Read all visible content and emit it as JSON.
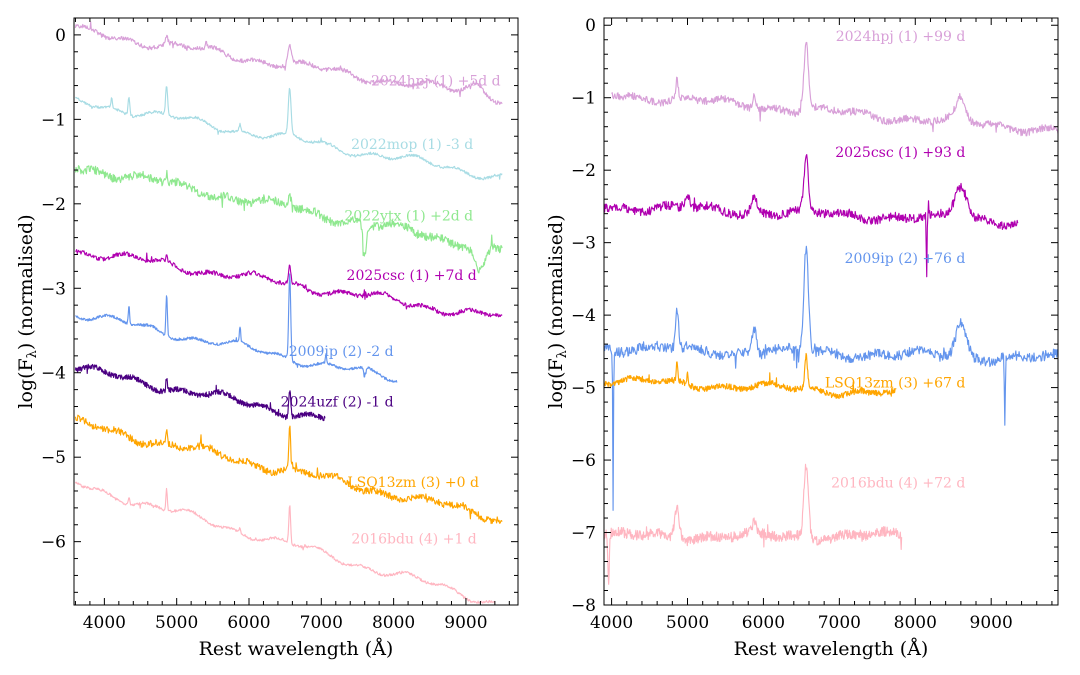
{
  "figure": {
    "background": "#ffffff"
  },
  "chart_data": [
    {
      "type": "line",
      "panel": "left",
      "xlabel": "Rest wavelength (Å)",
      "ylabel": "log(F",
      "ylabel_sub": "λ",
      "ylabel_tail": ") (normalised)",
      "xlim": [
        3580,
        9720
      ],
      "ylim": [
        -6.75,
        0.2
      ],
      "xticks": [
        4000,
        5000,
        6000,
        7000,
        8000,
        9000
      ],
      "yticks": [
        0,
        -1,
        -2,
        -3,
        -4,
        -5,
        -6
      ],
      "grid": false,
      "series": [
        {
          "name": "2024hpj (1) +5d d",
          "color": "#d8a0d8",
          "x_range": [
            3600,
            9500
          ],
          "start": 0.05,
          "end": -0.75,
          "noise": 0.025,
          "features": [
            {
              "x": 6563,
              "h": 0.22,
              "w": 25
            },
            {
              "x": 4861,
              "h": 0.1,
              "w": 15
            },
            {
              "x": 5410,
              "h": 0.08,
              "w": 8
            },
            {
              "x": 9150,
              "h": 0.12,
              "w": 120
            }
          ],
          "label_x": 9480,
          "label_y": -0.6
        },
        {
          "name": "2022mop (1) -3 d",
          "color": "#a8dce4",
          "x_range": [
            3600,
            9500
          ],
          "start": -0.78,
          "end": -1.68,
          "noise": 0.015,
          "features": [
            {
              "x": 6563,
              "h": 0.55,
              "w": 18
            },
            {
              "x": 4861,
              "h": 0.35,
              "w": 14
            },
            {
              "x": 4340,
              "h": 0.22,
              "w": 12
            },
            {
              "x": 4101,
              "h": 0.12,
              "w": 10
            },
            {
              "x": 5876,
              "h": 0.08,
              "w": 12
            }
          ],
          "label_x": 9100,
          "label_y": -1.35
        },
        {
          "name": "2022ytx (1) +2d d",
          "color": "#8fe88f",
          "x_range": [
            3600,
            9500
          ],
          "start": -1.55,
          "end": -2.55,
          "noise": 0.05,
          "features": [
            {
              "x": 6563,
              "h": 0.15,
              "w": 25
            },
            {
              "x": 7600,
              "h": -0.35,
              "w": 25
            },
            {
              "x": 9200,
              "h": -0.3,
              "w": 70
            },
            {
              "x": 4861,
              "h": 0.1,
              "w": 15
            }
          ],
          "label_x": 9100,
          "label_y": -2.2
        },
        {
          "name": "2025csc (1) +7d d",
          "color": "#b000b0",
          "x_range": [
            3600,
            9500
          ],
          "start": -2.55,
          "end": -3.35,
          "noise": 0.025,
          "features": [
            {
              "x": 6563,
              "h": 0.22,
              "w": 14
            },
            {
              "x": 4861,
              "h": 0.06,
              "w": 12
            }
          ],
          "label_x": 9150,
          "label_y": -2.9
        },
        {
          "name": "2009ip (2) -2 d",
          "color": "#6495ed",
          "x_range": [
            3600,
            8050
          ],
          "start": -3.3,
          "end": -4.08,
          "noise": 0.015,
          "features": [
            {
              "x": 6563,
              "h": 1.0,
              "w": 14
            },
            {
              "x": 4861,
              "h": 0.5,
              "w": 10
            },
            {
              "x": 4340,
              "h": 0.22,
              "w": 9
            },
            {
              "x": 5876,
              "h": 0.18,
              "w": 9
            },
            {
              "x": 7065,
              "h": 0.12,
              "w": 9
            },
            {
              "x": 7600,
              "h": -0.12,
              "w": 15
            }
          ],
          "label_x": 8000,
          "label_y": -3.8
        },
        {
          "name": "2024uzf (2) -1 d",
          "color": "#4b0082",
          "x_range": [
            3600,
            7050
          ],
          "start": -3.95,
          "end": -4.55,
          "noise": 0.03,
          "features": [
            {
              "x": 6563,
              "h": 0.32,
              "w": 14
            },
            {
              "x": 4861,
              "h": 0.12,
              "w": 10
            }
          ],
          "label_x": 8000,
          "label_y": -4.4
        },
        {
          "name": "LSQ13zm (3) +0 d",
          "color": "#ffa500",
          "x_range": [
            3600,
            9500
          ],
          "start": -4.6,
          "end": -5.72,
          "noise": 0.04,
          "features": [
            {
              "x": 6563,
              "h": 0.55,
              "w": 12
            },
            {
              "x": 4861,
              "h": 0.18,
              "w": 10
            }
          ],
          "label_x": 9180,
          "label_y": -5.35
        },
        {
          "name": "2016bdu (4) +1 d",
          "color": "#ffb6c1",
          "x_range": [
            3600,
            9400
          ],
          "start": -5.32,
          "end": -6.72,
          "noise": 0.015,
          "features": [
            {
              "x": 6563,
              "h": 0.45,
              "w": 12
            },
            {
              "x": 4861,
              "h": 0.25,
              "w": 10
            },
            {
              "x": 4340,
              "h": 0.1,
              "w": 9
            },
            {
              "x": 5876,
              "h": 0.06,
              "w": 9
            }
          ],
          "label_x": 9150,
          "label_y": -6.02
        }
      ]
    },
    {
      "type": "line",
      "panel": "right",
      "xlabel": "Rest wavelength (Å)",
      "ylabel": "log(F",
      "ylabel_sub": "λ",
      "ylabel_tail": ") (normalised)",
      "xlim": [
        3900,
        9880
      ],
      "ylim": [
        -8.0,
        0.1
      ],
      "xticks": [
        4000,
        5000,
        6000,
        7000,
        8000,
        9000
      ],
      "yticks": [
        0,
        -1,
        -2,
        -3,
        -4,
        -5,
        -6,
        -7,
        -8
      ],
      "grid": false,
      "series": [
        {
          "name": "2024hpj (1) +99 d",
          "color": "#d8a0d8",
          "x_range": [
            4000,
            9880
          ],
          "start": -0.95,
          "end": -1.45,
          "noise": 0.05,
          "features": [
            {
              "x": 6563,
              "h": 0.95,
              "w": 28
            },
            {
              "x": 4861,
              "h": 0.25,
              "w": 15
            },
            {
              "x": 5876,
              "h": 0.15,
              "w": 25
            },
            {
              "x": 8600,
              "h": 0.3,
              "w": 60
            }
          ],
          "label_x": 8660,
          "label_y": -0.22
        },
        {
          "name": "2025csc (1) +93 d",
          "color": "#b000b0",
          "x_range": [
            3900,
            9350
          ],
          "start": -2.5,
          "end": -2.7,
          "noise": 0.06,
          "features": [
            {
              "x": 6563,
              "h": 0.75,
              "w": 28
            },
            {
              "x": 8600,
              "h": 0.45,
              "w": 80
            },
            {
              "x": 5876,
              "h": 0.2,
              "w": 40
            },
            {
              "x": 5000,
              "h": 0.15,
              "w": 40
            },
            {
              "x": 8150,
              "h": -0.9,
              "w": 5
            }
          ],
          "label_x": 8660,
          "label_y": -1.82
        },
        {
          "name": "2009ip (2) +76 d",
          "color": "#6495ed",
          "x_range": [
            3900,
            9880
          ],
          "start": -4.45,
          "end": -4.6,
          "noise": 0.07,
          "features": [
            {
              "x": 6563,
              "h": 1.45,
              "w": 30
            },
            {
              "x": 4861,
              "h": 0.55,
              "w": 20
            },
            {
              "x": 5876,
              "h": 0.35,
              "w": 30
            },
            {
              "x": 8600,
              "h": 0.45,
              "w": 70
            },
            {
              "x": 4020,
              "h": -2.2,
              "w": 5
            },
            {
              "x": 9180,
              "h": -0.9,
              "w": 6
            }
          ],
          "label_x": 8660,
          "label_y": -3.28
        },
        {
          "name": "LSQ13zm (3) +67 d",
          "color": "#ffa500",
          "x_range": [
            3900,
            7750
          ],
          "start": -4.9,
          "end": -5.08,
          "noise": 0.04,
          "features": [
            {
              "x": 6563,
              "h": 0.45,
              "w": 18
            },
            {
              "x": 4861,
              "h": 0.25,
              "w": 10
            },
            {
              "x": 5000,
              "h": 0.2,
              "w": 8
            }
          ],
          "label_x": 8660,
          "label_y": -5.0
        },
        {
          "name": "2016bdu (4) +72 d",
          "color": "#ffb6c1",
          "x_range": [
            3900,
            7820
          ],
          "start": -7.05,
          "end": -7.05,
          "noise": 0.07,
          "features": [
            {
              "x": 6563,
              "h": 1.0,
              "w": 30
            },
            {
              "x": 4861,
              "h": 0.45,
              "w": 30
            },
            {
              "x": 3960,
              "h": -0.7,
              "w": 10
            },
            {
              "x": 5876,
              "h": 0.12,
              "w": 25
            }
          ],
          "label_x": 8660,
          "label_y": -6.38
        }
      ]
    }
  ]
}
